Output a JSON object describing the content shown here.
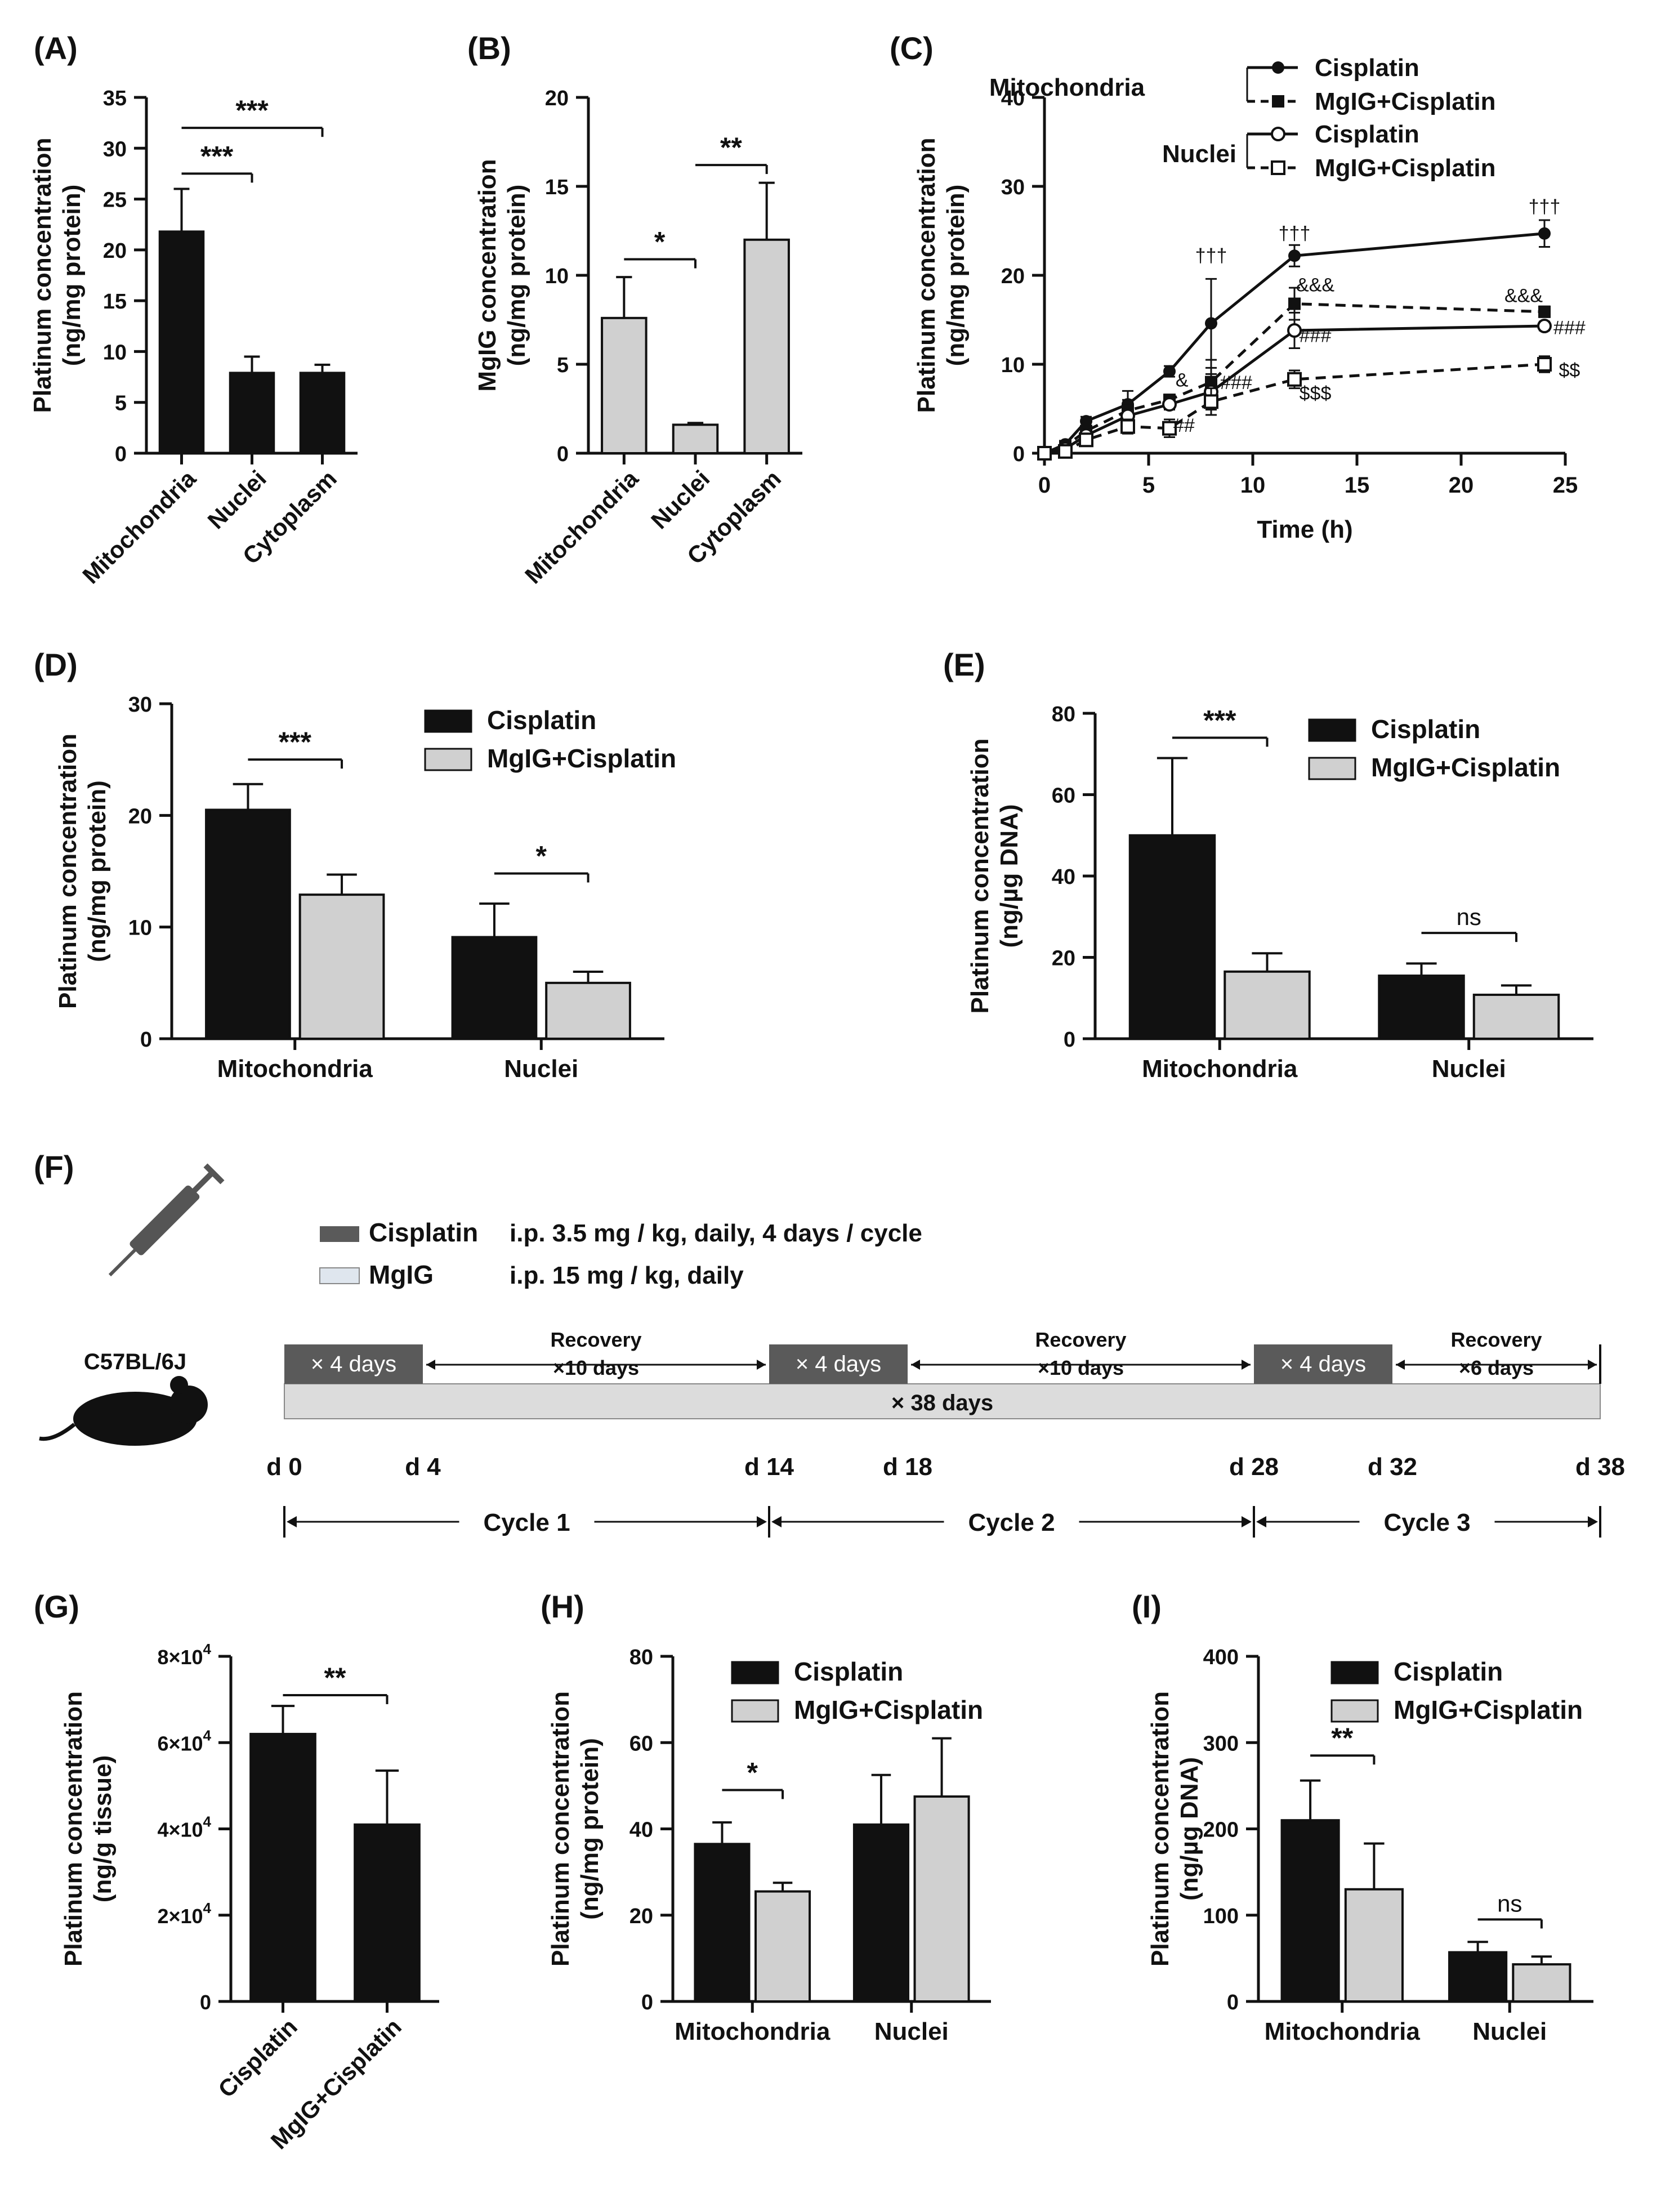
{
  "colors": {
    "black": "#111111",
    "gray": "#d0d0d0",
    "dark_gray": "#5a5a5a",
    "light_blue": "#dfe6ee",
    "axis": "#111111"
  },
  "chart_data": [
    {
      "id": "A",
      "panel_label": "(A)",
      "type": "bar",
      "ylabel_lines": [
        "Platinum concentration",
        "(ng/mg protein)"
      ],
      "ylim": [
        0,
        35
      ],
      "yticks": [
        "0",
        "5",
        "10",
        "15",
        "20",
        "25",
        "30",
        "35"
      ],
      "categories": [
        "Mitochondria",
        "Nuclei",
        "Cytoplasm"
      ],
      "series": [
        {
          "name": "",
          "color": "black",
          "values": [
            21.8,
            7.9,
            7.9
          ],
          "errors": [
            4.2,
            1.6,
            0.8
          ]
        }
      ],
      "significance": [
        {
          "from": 0,
          "to": 1,
          "at": 27.5,
          "label": "***"
        },
        {
          "from": 0,
          "to": 2,
          "at": 32.0,
          "label": "***"
        }
      ]
    },
    {
      "id": "B",
      "panel_label": "(B)",
      "type": "bar",
      "ylabel_lines": [
        "MgIG concentration",
        "(ng/mg protein)"
      ],
      "ylim": [
        0,
        20
      ],
      "yticks": [
        "0",
        "5",
        "10",
        "15",
        "20"
      ],
      "categories": [
        "Mitochondria",
        "Nuclei",
        "Cytoplasm"
      ],
      "series": [
        {
          "name": "",
          "color": "gray",
          "values": [
            7.6,
            1.6,
            12.0
          ],
          "errors": [
            2.3,
            0.1,
            3.2
          ]
        }
      ],
      "significance": [
        {
          "from": 0,
          "to": 1,
          "at": 10.9,
          "label": "*"
        },
        {
          "from": 1,
          "to": 2,
          "at": 16.2,
          "label": "**"
        }
      ]
    },
    {
      "id": "C",
      "panel_label": "(C)",
      "type": "line",
      "ylabel_lines": [
        "Platinum concentration",
        "(ng/mg protein)"
      ],
      "xlabel": "Time (h)",
      "xlim": [
        0,
        25
      ],
      "ylim": [
        0,
        40
      ],
      "xticks": [
        "0",
        "5",
        "10",
        "15",
        "20",
        "25"
      ],
      "yticks": [
        "0",
        "10",
        "20",
        "30",
        "40"
      ],
      "legend": {
        "group1": "Mitochondria",
        "group2": "Nuclei",
        "entry1": "Cisplatin",
        "entry2": "MgIG+Cisplatin",
        "entry3": "Cisplatin",
        "entry4": "MgIG+Cisplatin"
      },
      "series": [
        {
          "name": "Mitochondria Cisplatin",
          "style": "solid",
          "marker": "filled-circle",
          "x": [
            0,
            1,
            2,
            4,
            6,
            8,
            12,
            24
          ],
          "y": [
            0,
            1.0,
            3.6,
            5.5,
            9.2,
            14.6,
            22.2,
            24.7
          ],
          "errors": [
            0,
            0.3,
            0.5,
            1.5,
            0.6,
            5.0,
            1.2,
            1.5
          ]
        },
        {
          "name": "Mitochondria MgIG+Cisplatin",
          "style": "dashed",
          "marker": "filled-square",
          "x": [
            0,
            1,
            2,
            4,
            6,
            8,
            12,
            24
          ],
          "y": [
            0,
            0.8,
            2.5,
            4.8,
            6.0,
            8.0,
            16.8,
            15.9
          ],
          "errors": [
            0,
            0.2,
            0.5,
            1.2,
            0.6,
            2.5,
            1.8,
            0.6
          ]
        },
        {
          "name": "Nuclei Cisplatin",
          "style": "solid",
          "marker": "open-circle",
          "x": [
            0,
            1,
            2,
            4,
            6,
            8,
            12,
            24
          ],
          "y": [
            0,
            0.5,
            2.0,
            4.2,
            5.5,
            6.9,
            13.8,
            14.3
          ],
          "errors": [
            0,
            0.2,
            0.4,
            1.0,
            0.6,
            2.0,
            2.0,
            0.5
          ]
        },
        {
          "name": "Nuclei MgIG+Cisplatin",
          "style": "dashed",
          "marker": "open-square",
          "x": [
            0,
            1,
            2,
            4,
            6,
            8,
            12,
            24
          ],
          "y": [
            0,
            0.2,
            1.5,
            3.0,
            2.8,
            5.8,
            8.3,
            10.0
          ],
          "errors": [
            0,
            0.2,
            0.4,
            0.8,
            1.0,
            1.5,
            1.0,
            0.9
          ]
        }
      ],
      "annotations": [
        {
          "x": 8,
          "y": 21.5,
          "label": "†††"
        },
        {
          "x": 12,
          "y": 24.0,
          "label": "†††"
        },
        {
          "x": 24,
          "y": 27.0,
          "label": "†††"
        },
        {
          "x": 13,
          "y": 18.2,
          "label": "&&&"
        },
        {
          "x": 23,
          "y": 17.0,
          "label": "&&&"
        },
        {
          "x": 6.6,
          "y": 7.5,
          "label": "&"
        },
        {
          "x": 9.2,
          "y": 7.2,
          "label": "###"
        },
        {
          "x": 13,
          "y": 12.5,
          "label": "###"
        },
        {
          "x": 25.2,
          "y": 13.4,
          "label": "###"
        },
        {
          "x": 6.7,
          "y": 2.4,
          "label": "##"
        },
        {
          "x": 13,
          "y": 6.0,
          "label": "$$$"
        },
        {
          "x": 25.2,
          "y": 8.6,
          "label": "$$"
        }
      ]
    },
    {
      "id": "D",
      "panel_label": "(D)",
      "type": "bar",
      "ylabel_lines": [
        "Platinum concentration",
        "(ng/mg protein)"
      ],
      "ylim": [
        0,
        30
      ],
      "yticks": [
        "0",
        "10",
        "20",
        "30"
      ],
      "categories": [
        "Mitochondria",
        "Nuclei"
      ],
      "series": [
        {
          "name": "Cisplatin",
          "color": "black",
          "values": [
            20.5,
            9.1
          ],
          "errors": [
            2.3,
            3.0
          ]
        },
        {
          "name": "MgIG+Cisplatin",
          "color": "gray",
          "values": [
            12.9,
            5.0
          ],
          "errors": [
            1.8,
            1.0
          ]
        }
      ],
      "significance": [
        {
          "group": 0,
          "at": 25.0,
          "label": "***"
        },
        {
          "group": 1,
          "at": 14.8,
          "label": "*"
        }
      ]
    },
    {
      "id": "E",
      "panel_label": "(E)",
      "type": "bar",
      "ylabel_lines": [
        "Platinum concentration",
        "(ng/µg DNA)"
      ],
      "ylim": [
        0,
        80
      ],
      "yticks": [
        "0",
        "20",
        "40",
        "60",
        "80"
      ],
      "categories": [
        "Mitochondria",
        "Nuclei"
      ],
      "series": [
        {
          "name": "Cisplatin",
          "color": "black",
          "values": [
            50,
            15.5
          ],
          "errors": [
            19,
            3
          ]
        },
        {
          "name": "MgIG+Cisplatin",
          "color": "gray",
          "values": [
            16.5,
            10.8
          ],
          "errors": [
            4.5,
            2.3
          ]
        }
      ],
      "significance": [
        {
          "group": 0,
          "at": 74,
          "label": "***"
        },
        {
          "group": 1,
          "at": 26,
          "label": "ns"
        }
      ]
    },
    {
      "id": "G",
      "panel_label": "(G)",
      "type": "bar",
      "ylabel_lines": [
        "Platinum concentration",
        "(ng/g   tissue)"
      ],
      "ylim": [
        0,
        80000
      ],
      "ytick_labels": [
        {
          "base": "0",
          "exp": ""
        },
        {
          "base": "2×10",
          "exp": "4"
        },
        {
          "base": "4×10",
          "exp": "4"
        },
        {
          "base": "6×10",
          "exp": "4"
        },
        {
          "base": "8×10",
          "exp": "4"
        }
      ],
      "categories": [
        "Cisplatin",
        "MgIG+Cisplatin"
      ],
      "series": [
        {
          "name": "",
          "color": "black",
          "values": [
            62000,
            41000
          ],
          "errors": [
            6500,
            12500
          ]
        }
      ],
      "significance": [
        {
          "from": 0,
          "to": 1,
          "at": 71000,
          "label": "**"
        }
      ]
    },
    {
      "id": "H",
      "panel_label": "(H)",
      "type": "bar",
      "ylabel_lines": [
        "Platinum concentration",
        "(ng/mg protein)"
      ],
      "ylim": [
        0,
        80
      ],
      "yticks": [
        "0",
        "20",
        "40",
        "60",
        "80"
      ],
      "categories": [
        "Mitochondria",
        "Nuclei"
      ],
      "series": [
        {
          "name": "Cisplatin",
          "color": "black",
          "values": [
            36.5,
            41
          ],
          "errors": [
            5,
            11.5
          ]
        },
        {
          "name": "MgIG+Cisplatin",
          "color": "gray",
          "values": [
            25.5,
            47.5
          ],
          "errors": [
            2,
            13.5
          ]
        }
      ],
      "significance": [
        {
          "group": 0,
          "at": 49,
          "label": "*"
        }
      ]
    },
    {
      "id": "I",
      "panel_label": "(I)",
      "type": "bar",
      "ylabel_lines": [
        "Platinum concentration",
        "(ng/µg DNA)"
      ],
      "ylim": [
        0,
        400
      ],
      "yticks": [
        "0",
        "100",
        "200",
        "300",
        "400"
      ],
      "categories": [
        "Mitochondria",
        "Nuclei"
      ],
      "series": [
        {
          "name": "Cisplatin",
          "color": "black",
          "values": [
            210,
            57
          ],
          "errors": [
            46,
            12
          ]
        },
        {
          "name": "MgIG+Cisplatin",
          "color": "gray",
          "values": [
            130,
            43
          ],
          "errors": [
            53,
            9
          ]
        }
      ],
      "significance": [
        {
          "group": 0,
          "at": 285,
          "label": "**"
        },
        {
          "group": 1,
          "at": 95,
          "label": "ns"
        }
      ]
    }
  ],
  "timeline": {
    "panel_label": "(F)",
    "legend_cisplatin": "Cisplatin",
    "legend_cisplatin_desc": "i.p. 3.5 mg / kg, daily, 4 days / cycle",
    "legend_mglg": "MgIG",
    "legend_mglg_desc": "i.p. 15 mg / kg, daily",
    "strain": "C57BL/6J",
    "treat_label": "× 4 days",
    "recovery_label": "Recovery",
    "recovery_1": "×10 days",
    "recovery_2": "×10 days",
    "recovery_3": "×6 days",
    "total_bar": "× 38 days",
    "days": [
      "d 0",
      "d 4",
      "d 14",
      "d 18",
      "d 28",
      "d 32",
      "d 38"
    ],
    "cycles": [
      "Cycle 1",
      "Cycle 2",
      "Cycle 3"
    ]
  }
}
